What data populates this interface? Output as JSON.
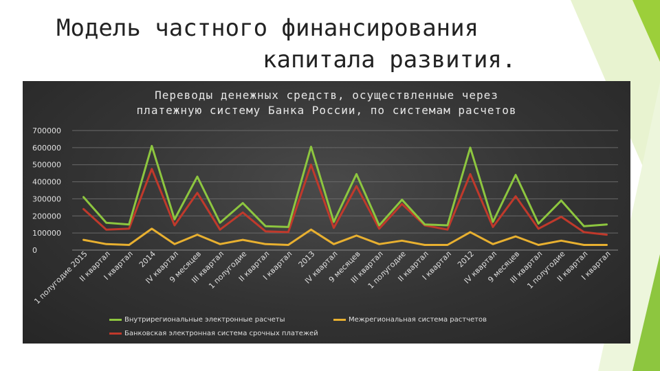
{
  "slide": {
    "title_line1": "Модель частного финансирования",
    "title_line2": "капитала развития."
  },
  "chart_data": {
    "type": "line",
    "title": "Переводы денежных средств, осуществленные через платежную систему Банка России, по системам расчетов",
    "title_line1": "Переводы денежных средств, осуществленные через",
    "title_line2": "платежную систему Банка России, по системам расчетов",
    "xlabel": "",
    "ylabel": "",
    "ylim": [
      0,
      700000
    ],
    "yticks": [
      "700000",
      "600000",
      "500000",
      "400000",
      "300000",
      "200000",
      "100000",
      "0"
    ],
    "grid": true,
    "legend_position": "bottom",
    "categories": [
      "1 полугодие 2015",
      "II квартал",
      "I квартал",
      "2014",
      "IV квартал",
      "9 месяцев",
      "III квартал",
      "1 полугодие",
      "II квартал",
      "I квартал",
      "2013",
      "IV квартал",
      "9 месяцев",
      "III квартал",
      "1 полугодие",
      "II квартал",
      "I квартал",
      "2012",
      "IV квартал",
      "9 месяцев",
      "III квартал",
      "1 полугодие",
      "II квартал",
      "I квартал"
    ],
    "series": [
      {
        "name": "Внутрирегиональные электронные расчеты",
        "color": "#8dc63f",
        "values": [
          310000,
          160000,
          150000,
          610000,
          180000,
          430000,
          160000,
          275000,
          140000,
          135000,
          605000,
          165000,
          445000,
          145000,
          295000,
          150000,
          145000,
          600000,
          165000,
          440000,
          155000,
          290000,
          140000,
          150000
        ]
      },
      {
        "name": "Межрегиональная система растчетов",
        "color": "#e8b030",
        "values": [
          60000,
          35000,
          30000,
          125000,
          35000,
          90000,
          35000,
          60000,
          35000,
          30000,
          120000,
          35000,
          85000,
          35000,
          55000,
          30000,
          30000,
          105000,
          35000,
          80000,
          30000,
          55000,
          30000,
          30000
        ]
      },
      {
        "name": "Банковская электронная система срочных платежей",
        "color": "#c0392b",
        "values": [
          240000,
          120000,
          125000,
          475000,
          145000,
          335000,
          120000,
          220000,
          110000,
          105000,
          500000,
          130000,
          375000,
          125000,
          270000,
          145000,
          120000,
          445000,
          135000,
          315000,
          125000,
          195000,
          105000,
          90000
        ]
      }
    ]
  }
}
